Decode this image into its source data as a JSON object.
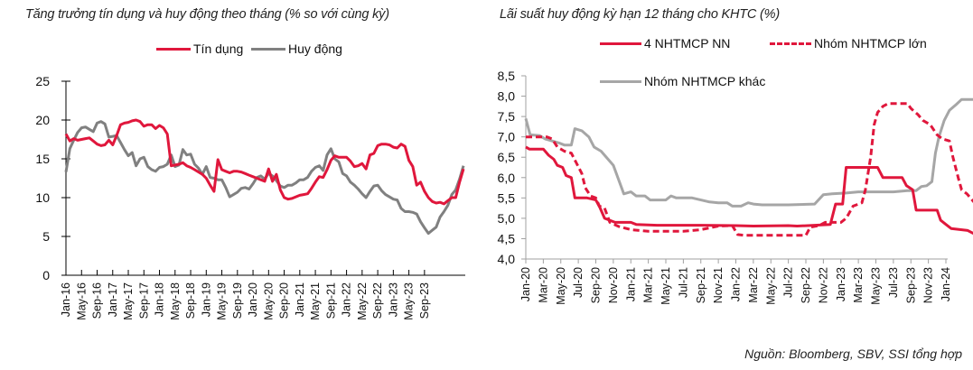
{
  "source_note": "Nguồn:  Bloomberg, SBV, SSI tổng hợp",
  "chart_data": [
    {
      "type": "line",
      "title": "Tăng trưởng tín dụng và huy động theo tháng (% so với cùng kỳ)",
      "xlabel": "",
      "ylabel": "",
      "ylim": [
        0,
        25
      ],
      "yticks": [
        0,
        5,
        10,
        15,
        20,
        25
      ],
      "ytick_labels": [
        "0",
        "5",
        "10",
        "15",
        "20",
        "25"
      ],
      "xtick_labels": [
        "Jan-16",
        "May-16",
        "Sep-16",
        "Jan-17",
        "May-17",
        "Sep-17",
        "Jan-18",
        "May-18",
        "Sep-18",
        "Jan-19",
        "May-19",
        "Sep-19",
        "Jan-20",
        "May-20",
        "Sep-20",
        "Jan-21",
        "May-21",
        "Sep-21",
        "Jan-22",
        "May-22",
        "Sep-22",
        "Jan-23",
        "May-23",
        "Sep-23"
      ],
      "x_start": "Jan-16",
      "x_step_months": 1,
      "grid": false,
      "legend": "top-center",
      "series": [
        {
          "name": "Tín dụng",
          "color": "#e0173c",
          "dash": false,
          "values": [
            18.2,
            17.3,
            17.6,
            17.4,
            17.5,
            17.6,
            17.7,
            17.3,
            16.9,
            16.7,
            16.8,
            17.4,
            16.8,
            18.0,
            19.4,
            19.6,
            19.7,
            19.9,
            20.0,
            19.8,
            19.2,
            19.4,
            19.4,
            18.9,
            19.3,
            19.0,
            18.2,
            14.1,
            14.2,
            14.3,
            14.5,
            14.1,
            13.9,
            13.6,
            13.3,
            13.0,
            12.5,
            11.6,
            10.8,
            14.9,
            13.6,
            13.4,
            13.2,
            13.4,
            13.4,
            13.3,
            13.1,
            12.9,
            12.7,
            12.5,
            12.3,
            12.1,
            13.7,
            12.1,
            13.0,
            11.0,
            10.0,
            9.8,
            9.9,
            10.1,
            10.3,
            10.4,
            10.5,
            11.2,
            12.0,
            12.7,
            12.6,
            13.6,
            14.8,
            15.4,
            15.2,
            15.2,
            15.2,
            14.7,
            14.0,
            14.1,
            14.4,
            13.7,
            15.5,
            15.7,
            16.7,
            16.9,
            16.9,
            16.8,
            16.5,
            16.4,
            16.9,
            16.6,
            14.8,
            14.0,
            11.6,
            12.0,
            10.8,
            10.0,
            9.5,
            9.3,
            9.4,
            9.2,
            9.6,
            10.0,
            10.0,
            12.0,
            13.7
          ],
          "note": "monthly values Jan-16 to Dec-23 (approx., read from chart)"
        },
        {
          "name": "Huy động",
          "color": "#808080",
          "dash": false,
          "values": [
            13.3,
            16.3,
            17.4,
            18.4,
            19.0,
            19.1,
            18.8,
            18.5,
            19.6,
            19.8,
            19.5,
            17.8,
            17.9,
            18.0,
            17.1,
            16.2,
            15.4,
            15.8,
            14.1,
            15.0,
            15.2,
            14.0,
            13.6,
            13.4,
            13.9,
            14.0,
            14.3,
            15.5,
            14.0,
            14.2,
            16.2,
            15.5,
            15.6,
            14.3,
            13.8,
            13.0,
            14.0,
            12.6,
            12.5,
            12.3,
            12.3,
            11.3,
            10.1,
            10.4,
            10.7,
            11.2,
            11.3,
            11.1,
            11.8,
            12.6,
            12.8,
            12.4,
            13.1,
            12.8,
            12.2,
            11.5,
            11.3,
            11.6,
            11.6,
            11.9,
            12.3,
            12.3,
            12.6,
            13.4,
            13.9,
            14.1,
            13.5,
            15.5,
            16.3,
            15.0,
            14.6,
            13.1,
            12.8,
            12.0,
            11.6,
            11.1,
            10.5,
            10.0,
            10.8,
            11.5,
            11.6,
            10.9,
            10.4,
            10.1,
            9.8,
            9.7,
            8.6,
            8.2,
            8.2,
            8.1,
            7.9,
            6.9,
            6.1,
            5.4,
            5.8,
            6.2,
            7.5,
            8.2,
            9.0,
            10.4,
            11.0,
            12.4,
            14.1
          ],
          "note": "monthly values Jan-16 to Dec-23 (approx., read from chart)"
        }
      ]
    },
    {
      "type": "line",
      "title": "Lãi suất huy động kỳ hạn 12 tháng cho KHTC (%)",
      "xlabel": "",
      "ylabel": "",
      "ylim": [
        4.0,
        8.5
      ],
      "yticks": [
        4.0,
        4.5,
        5.0,
        5.5,
        6.0,
        6.5,
        7.0,
        7.5,
        8.0,
        8.5
      ],
      "ytick_labels": [
        "4,0",
        "4,5",
        "5,0",
        "5,5",
        "6,0",
        "6,5",
        "7,0",
        "7,5",
        "8,0",
        "8,5"
      ],
      "xtick_labels": [
        "Jan-20",
        "Mar-20",
        "May-20",
        "Jul-20",
        "Sep-20",
        "Nov-20",
        "Jan-21",
        "Mar-21",
        "May-21",
        "Jul-21",
        "Sep-21",
        "Nov-21",
        "Jan-22",
        "Mar-22",
        "May-22",
        "Jul-22",
        "Sep-22",
        "Nov-22",
        "Jan-23",
        "Mar-23",
        "May-23",
        "Jul-23",
        "Sep-23",
        "Nov-23",
        "Jan-24"
      ],
      "x_start": "Jan-20",
      "x_end": "Jan-24",
      "grid": false,
      "legend": "top",
      "series": [
        {
          "name": "4 NHTMCP NN",
          "color": "#e0173c",
          "dash": false,
          "points": [
            [
              0,
              6.75
            ],
            [
              0.4,
              6.7
            ],
            [
              2.0,
              6.7
            ],
            [
              2.6,
              6.55
            ],
            [
              3.2,
              6.45
            ],
            [
              3.6,
              6.3
            ],
            [
              4.2,
              6.25
            ],
            [
              4.6,
              6.05
            ],
            [
              5.2,
              6.0
            ],
            [
              5.6,
              5.5
            ],
            [
              7.0,
              5.5
            ],
            [
              8.0,
              5.45
            ],
            [
              8.5,
              5.25
            ],
            [
              9.0,
              5.0
            ],
            [
              9.6,
              4.95
            ],
            [
              10.2,
              4.9
            ],
            [
              12.0,
              4.9
            ],
            [
              12.6,
              4.85
            ],
            [
              15.0,
              4.83
            ],
            [
              20.0,
              4.83
            ],
            [
              24.0,
              4.82
            ],
            [
              26.0,
              4.81
            ],
            [
              30.0,
              4.82
            ],
            [
              31.0,
              4.81
            ],
            [
              33.0,
              4.83
            ],
            [
              34.8,
              4.85
            ],
            [
              35.4,
              5.35
            ],
            [
              36.2,
              5.35
            ],
            [
              36.6,
              6.25
            ],
            [
              40.2,
              6.25
            ],
            [
              40.8,
              6.0
            ],
            [
              43.0,
              6.0
            ],
            [
              43.5,
              5.8
            ],
            [
              44.2,
              5.7
            ],
            [
              44.6,
              5.2
            ],
            [
              47.0,
              5.2
            ],
            [
              47.4,
              4.95
            ],
            [
              48.0,
              4.85
            ],
            [
              48.6,
              4.75
            ],
            [
              50.5,
              4.7
            ],
            [
              51.2,
              4.62
            ],
            [
              52.0,
              4.5
            ],
            [
              52.4,
              4.45
            ]
          ],
          "note": "[month index from Jan-20, rate %] (approx.)"
        },
        {
          "name": "Nhóm NHTMCP lớn",
          "color": "#e0173c",
          "dash": true,
          "points": [
            [
              0,
              7.0
            ],
            [
              0.6,
              7.0
            ],
            [
              2.4,
              7.0
            ],
            [
              3.0,
              6.95
            ],
            [
              3.6,
              6.75
            ],
            [
              4.4,
              6.65
            ],
            [
              5.2,
              6.6
            ],
            [
              5.8,
              6.35
            ],
            [
              6.4,
              6.1
            ],
            [
              6.8,
              5.75
            ],
            [
              7.4,
              5.55
            ],
            [
              8.0,
              5.5
            ],
            [
              8.4,
              5.3
            ],
            [
              9.0,
              5.25
            ],
            [
              9.6,
              4.9
            ],
            [
              10.6,
              4.8
            ],
            [
              12.0,
              4.72
            ],
            [
              14.0,
              4.68
            ],
            [
              18.0,
              4.68
            ],
            [
              20.0,
              4.72
            ],
            [
              22.0,
              4.81
            ],
            [
              23.6,
              4.82
            ],
            [
              24.2,
              4.6
            ],
            [
              25.0,
              4.58
            ],
            [
              30.0,
              4.58
            ],
            [
              32.0,
              4.58
            ],
            [
              32.5,
              4.78
            ],
            [
              33.5,
              4.82
            ],
            [
              34.2,
              4.9
            ],
            [
              36.0,
              4.9
            ],
            [
              36.6,
              5.0
            ],
            [
              37.4,
              5.3
            ],
            [
              38.4,
              5.38
            ],
            [
              38.8,
              5.7
            ],
            [
              39.4,
              6.5
            ],
            [
              39.8,
              7.3
            ],
            [
              40.2,
              7.6
            ],
            [
              40.8,
              7.75
            ],
            [
              41.4,
              7.82
            ],
            [
              43.6,
              7.82
            ],
            [
              44.0,
              7.7
            ],
            [
              44.8,
              7.55
            ],
            [
              45.4,
              7.4
            ],
            [
              46.2,
              7.3
            ],
            [
              47.0,
              7.05
            ],
            [
              47.6,
              6.95
            ],
            [
              48.4,
              6.9
            ],
            [
              48.8,
              6.5
            ],
            [
              49.4,
              6.0
            ],
            [
              49.8,
              5.7
            ],
            [
              50.4,
              5.6
            ],
            [
              51.0,
              5.45
            ],
            [
              51.6,
              5.3
            ],
            [
              52.0,
              5.05
            ],
            [
              52.6,
              4.95
            ],
            [
              53.0,
              4.85
            ]
          ],
          "note": "[month index from Jan-20, rate %] (approx.)"
        },
        {
          "name": "Nhóm NHTMCP khác",
          "color": "#a6a6a6",
          "dash": false,
          "points": [
            [
              0,
              7.45
            ],
            [
              0.5,
              7.05
            ],
            [
              1.6,
              7.03
            ],
            [
              2.2,
              6.95
            ],
            [
              3.0,
              6.9
            ],
            [
              3.8,
              6.85
            ],
            [
              4.4,
              6.8
            ],
            [
              5.2,
              6.8
            ],
            [
              5.6,
              7.2
            ],
            [
              6.4,
              7.15
            ],
            [
              7.2,
              7.0
            ],
            [
              7.8,
              6.75
            ],
            [
              8.6,
              6.65
            ],
            [
              9.4,
              6.45
            ],
            [
              10.0,
              6.3
            ],
            [
              10.6,
              5.95
            ],
            [
              11.2,
              5.6
            ],
            [
              12.0,
              5.65
            ],
            [
              12.6,
              5.55
            ],
            [
              13.6,
              5.55
            ],
            [
              14.2,
              5.45
            ],
            [
              15.0,
              5.45
            ],
            [
              16.0,
              5.45
            ],
            [
              16.6,
              5.55
            ],
            [
              17.2,
              5.5
            ],
            [
              19.0,
              5.5
            ],
            [
              20.0,
              5.45
            ],
            [
              21.0,
              5.4
            ],
            [
              22.0,
              5.38
            ],
            [
              23.0,
              5.38
            ],
            [
              23.6,
              5.3
            ],
            [
              24.6,
              5.3
            ],
            [
              25.4,
              5.38
            ],
            [
              26.0,
              5.35
            ],
            [
              27.0,
              5.33
            ],
            [
              30.0,
              5.33
            ],
            [
              33.0,
              5.35
            ],
            [
              34.0,
              5.58
            ],
            [
              35.0,
              5.6
            ],
            [
              36.6,
              5.62
            ],
            [
              38.0,
              5.65
            ],
            [
              42.0,
              5.65
            ],
            [
              43.6,
              5.68
            ],
            [
              44.6,
              5.68
            ],
            [
              45.2,
              5.78
            ],
            [
              45.8,
              5.8
            ],
            [
              46.4,
              5.9
            ],
            [
              46.8,
              6.6
            ],
            [
              47.2,
              7.0
            ],
            [
              47.8,
              7.4
            ],
            [
              48.4,
              7.65
            ],
            [
              49.2,
              7.8
            ],
            [
              49.8,
              7.92
            ],
            [
              52.0,
              7.92
            ],
            [
              53.0,
              7.92
            ]
          ],
          "note": "[month index from Jan-20, rate %] (approx.)"
        }
      ]
    }
  ]
}
